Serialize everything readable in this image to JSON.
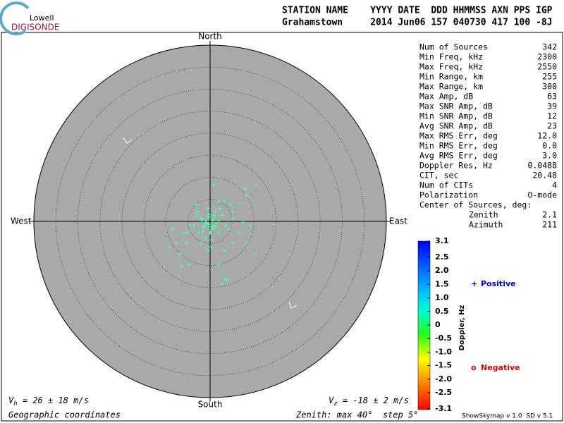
{
  "logo": {
    "line1": "Lowell",
    "line2": "DIGISONDE"
  },
  "header": {
    "labels": "STATION NAME    YYYY DATE  DDD HHMMSS AXN PPS IGP",
    "values": "Grahamstown     2014 Jun06 157 040730 417 100 -8J"
  },
  "stats": [
    [
      "Num of Sources",
      "342"
    ],
    [
      "Min Freq, kHz",
      "2300"
    ],
    [
      "Max Freq, kHz",
      "2550"
    ],
    [
      "Min Range, km",
      "255"
    ],
    [
      "Max Range, km",
      "300"
    ],
    [
      "Max Amp, dB",
      "63"
    ],
    [
      "Max SNR Amp, dB",
      "39"
    ],
    [
      "Min SNR Amp, dB",
      "12"
    ],
    [
      "Avg SNR Amp, dB",
      "23"
    ],
    [
      "Max RMS Err, deg",
      "12.0"
    ],
    [
      "Min RMS Err, deg",
      "0.0"
    ],
    [
      "Avg RMS Err, deg",
      "3.0"
    ],
    [
      "Doppler Res, Hz",
      "0.0488"
    ],
    [
      "CIT, sec",
      "20.48"
    ],
    [
      "Num of CITs",
      "4"
    ],
    [
      "Polarization",
      "O-mode"
    ]
  ],
  "center": {
    "title": "Center of Sources, deg:",
    "rows": [
      [
        "Zenith",
        "2.1"
      ],
      [
        "Azimuth",
        "211"
      ]
    ]
  },
  "chart_data": {
    "type": "scatter",
    "directions": {
      "north": "North",
      "south": "South",
      "east": "East",
      "west": "West"
    },
    "xlim": [
      -40,
      40
    ],
    "ylim": [
      -40,
      40
    ],
    "rings": [
      5,
      10,
      15,
      20,
      25,
      30,
      35
    ],
    "color": "#44ffaa",
    "x": [
      0.8,
      8.0,
      10.4,
      8.3,
      6.7,
      3.2,
      4.5,
      1.9,
      1.1,
      2.7,
      5.1,
      7.5,
      -2.9,
      -4.5,
      -6.1,
      -8.5,
      -7.7,
      -9.3,
      -6.4,
      -4.8,
      1.9,
      3.2,
      3.8,
      2.7,
      10.4,
      8.3,
      5.1,
      -0.5,
      6.7,
      -2.6,
      -1.3,
      0.3,
      -0.3,
      0.6,
      -1.0,
      -1.6,
      1.1,
      0.0,
      1.9,
      -2.1,
      -3.7,
      3.5,
      4.3,
      0.3,
      -2.1,
      -5.3,
      -2.9,
      -0.5,
      2.2,
      5.1,
      -3.2,
      -5.3,
      9.1,
      -6.9,
      0.3,
      3.2,
      -1.0,
      1.0,
      -0.3,
      -1.6,
      0.5,
      -0.8,
      1.4,
      -0.4,
      0.9,
      -1.9,
      2.0,
      0.2
    ],
    "y": [
      8.3,
      7.4,
      8.3,
      5.8,
      4.2,
      4.5,
      3.8,
      4.6,
      2.2,
      1.4,
      0.6,
      -0.2,
      1.4,
      -1.0,
      -2.6,
      -1.8,
      -5.0,
      -5.8,
      -10.2,
      -9.9,
      -9.8,
      -13.0,
      -13.3,
      -14.1,
      -7.4,
      -5.0,
      -5.0,
      -6.6,
      -2.6,
      -2.6,
      -1.0,
      -1.8,
      -0.6,
      0.3,
      -0.2,
      -1.3,
      -1.3,
      -2.6,
      -2.6,
      0.6,
      -1.0,
      -1.0,
      -1.8,
      -4.2,
      -5.0,
      -5.0,
      2.2,
      3.0,
      3.0,
      2.2,
      3.8,
      -2.6,
      -1.0,
      -7.4,
      -5.8,
      -6.6,
      -3.8,
      1.3,
      1.0,
      -2.2,
      0.5,
      -0.4,
      -0.6,
      1.6,
      -0.9,
      0.4,
      0.2,
      -1.2
    ],
    "colorbar": {
      "label": "Doppler, Hz",
      "clim": [
        -3.1,
        3.1
      ],
      "ticks": [
        3.1,
        2.5,
        {
          "value": 2,
          "label": "2.0"
        },
        1.5,
        {
          "value": 1,
          "label": "1.0"
        },
        0.5,
        0,
        -0.5,
        {
          "value": -1,
          "label": "-1.0"
        },
        -1.5,
        {
          "value": -2,
          "label": "-2.0"
        },
        -2.5,
        -3.1
      ]
    },
    "legend": [
      {
        "symbol": "+",
        "name": "Positive",
        "color": "#0000cc"
      },
      {
        "symbol": "o",
        "name": "Negative",
        "color": "#dd0000"
      }
    ],
    "vh": {
      "symbol": "V",
      "sub": "h",
      "text": " = 26 ± 18 m/s"
    },
    "vz": {
      "symbol": "V",
      "sub": "z",
      "text": " = -18 ± 2 m/s"
    },
    "coords": "Geographic coordinates",
    "zenith": "Zenith: max 40°  step 5°",
    "version": "ShowSkymap v 1.0  SD v 5.1"
  }
}
